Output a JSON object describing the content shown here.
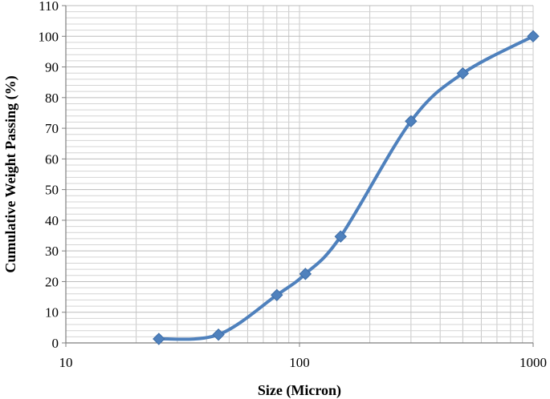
{
  "chart_data": {
    "type": "line",
    "title": "",
    "xlabel": "Size (Micron)",
    "ylabel": "Cumulative Weight Passing (%)",
    "x_scale": "log",
    "xlim": [
      10,
      1000
    ],
    "ylim": [
      0,
      110
    ],
    "x_ticks": [
      10,
      100,
      1000
    ],
    "y_ticks": [
      0,
      10,
      20,
      30,
      40,
      50,
      60,
      70,
      80,
      90,
      100,
      110
    ],
    "grid": true,
    "legend": "none",
    "series": [
      {
        "color": "#4f81bd",
        "marker": "diamond",
        "smooth": true,
        "points": [
          {
            "x": 25,
            "y": 1.3
          },
          {
            "x": 45,
            "y": 2.7
          },
          {
            "x": 80,
            "y": 15.6
          },
          {
            "x": 106,
            "y": 22.5
          },
          {
            "x": 150,
            "y": 34.7
          },
          {
            "x": 300,
            "y": 72.3
          },
          {
            "x": 500,
            "y": 87.9
          },
          {
            "x": 1000,
            "y": 100
          }
        ]
      }
    ]
  }
}
